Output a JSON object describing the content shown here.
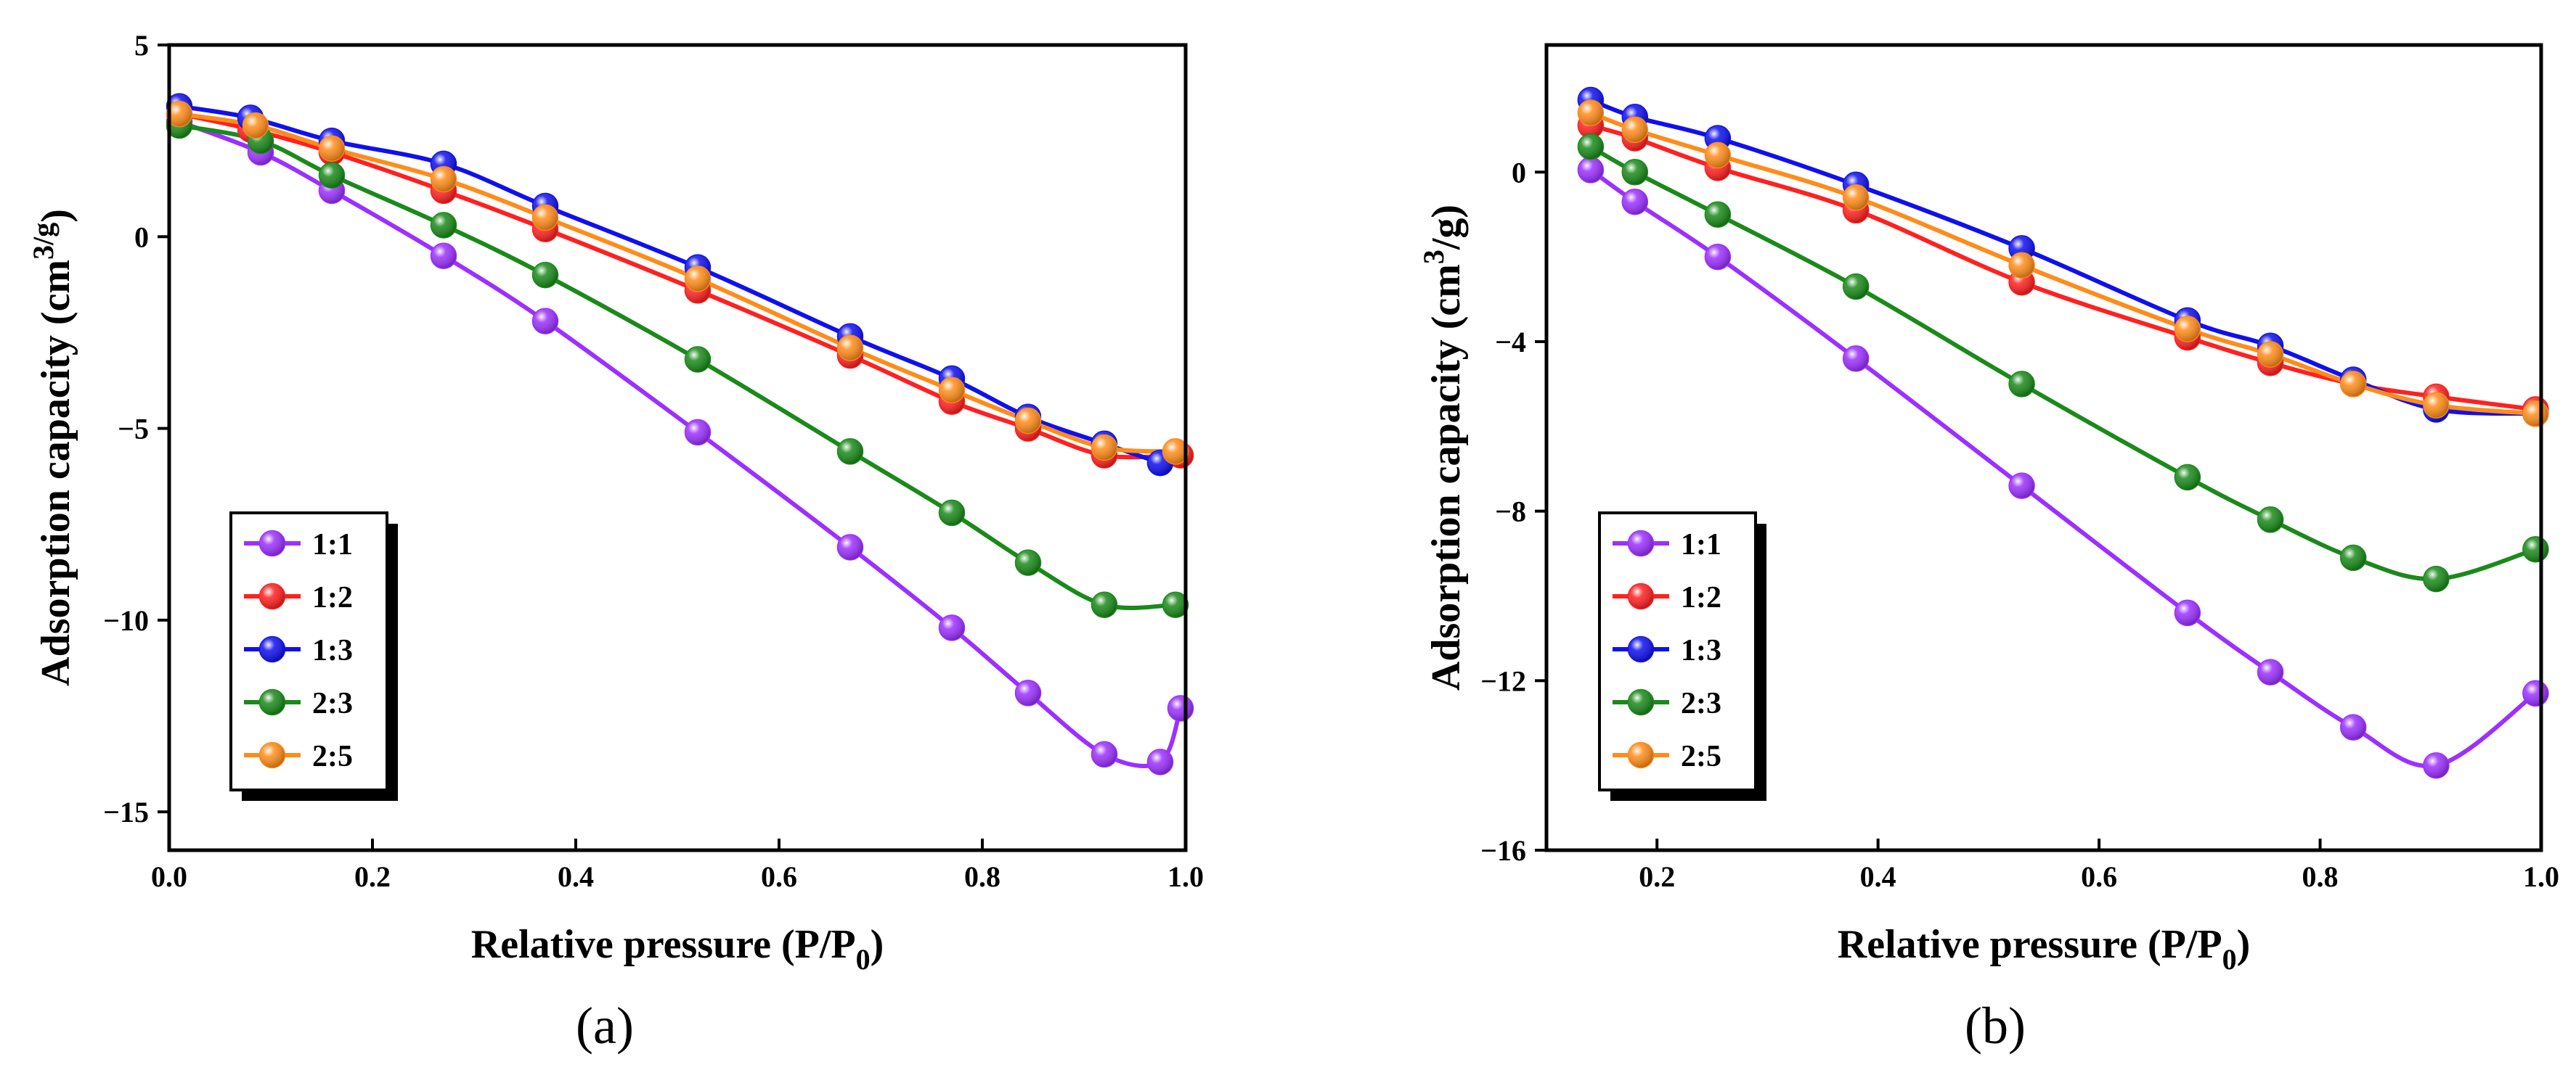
{
  "panels": {
    "a": {
      "label": "(a)",
      "xticks": [
        "0.0",
        "0.2",
        "0.4",
        "0.6",
        "0.8",
        "1.0"
      ],
      "yticks": [
        "5",
        "0",
        "−5",
        "−10",
        "−15"
      ]
    },
    "b": {
      "label": "(b)",
      "xticks": [
        "0.2",
        "0.4",
        "0.6",
        "0.8",
        "1.0"
      ],
      "yticks": [
        "0",
        "−4",
        "−8",
        "−12",
        "−16"
      ]
    }
  },
  "chart_data": [
    {
      "type": "line",
      "title": "",
      "xlabel": "Relative pressure (P/P0)",
      "ylabel": "Adsorption capacity (cm3/g)",
      "xlim": [
        0.0,
        1.0
      ],
      "ylim": [
        -16,
        5
      ],
      "xtick_values": [
        0.0,
        0.2,
        0.4,
        0.6,
        0.8,
        1.0
      ],
      "ytick_values": [
        5,
        0,
        -5,
        -10,
        -15
      ],
      "legend_position": "bottom-left",
      "grid": false,
      "series": [
        {
          "name": "1:1",
          "color": "#9b30ff",
          "x": [
            0.01,
            0.09,
            0.16,
            0.27,
            0.37,
            0.52,
            0.67,
            0.77,
            0.845,
            0.92,
            0.975,
            0.995
          ],
          "y": [
            3.0,
            2.2,
            1.2,
            -0.5,
            -2.2,
            -5.1,
            -8.1,
            -10.2,
            -11.9,
            -13.5,
            -13.7,
            -12.3
          ]
        },
        {
          "name": "1:2",
          "color": "#ff2020",
          "x": [
            0.01,
            0.08,
            0.16,
            0.27,
            0.37,
            0.52,
            0.67,
            0.77,
            0.845,
            0.92,
            0.995
          ],
          "y": [
            3.2,
            2.8,
            2.2,
            1.2,
            0.2,
            -1.4,
            -3.1,
            -4.3,
            -5.0,
            -5.7,
            -5.7
          ]
        },
        {
          "name": "1:3",
          "color": "#1010ee",
          "x": [
            0.01,
            0.08,
            0.16,
            0.27,
            0.37,
            0.52,
            0.67,
            0.77,
            0.845,
            0.92,
            0.975
          ],
          "y": [
            3.4,
            3.1,
            2.5,
            1.9,
            0.8,
            -0.8,
            -2.6,
            -3.7,
            -4.7,
            -5.4,
            -5.9
          ]
        },
        {
          "name": "2:3",
          "color": "#1a8a1a",
          "x": [
            0.01,
            0.09,
            0.16,
            0.27,
            0.37,
            0.52,
            0.67,
            0.77,
            0.845,
            0.92,
            0.99
          ],
          "y": [
            2.9,
            2.5,
            1.6,
            0.3,
            -1.0,
            -3.2,
            -5.6,
            -7.2,
            -8.5,
            -9.6,
            -9.6
          ]
        },
        {
          "name": "2:5",
          "color": "#ff8c1a",
          "x": [
            0.01,
            0.085,
            0.16,
            0.27,
            0.37,
            0.52,
            0.67,
            0.77,
            0.845,
            0.92,
            0.99
          ],
          "y": [
            3.2,
            2.9,
            2.3,
            1.5,
            0.5,
            -1.1,
            -2.9,
            -4.0,
            -4.8,
            -5.5,
            -5.6
          ]
        }
      ]
    },
    {
      "type": "line",
      "title": "",
      "xlabel": "Relative pressure (P/P0)",
      "ylabel": "Adsorption capacity (cm3/g)",
      "xlim": [
        0.1,
        1.0
      ],
      "ylim": [
        -16,
        3
      ],
      "xtick_values": [
        0.2,
        0.4,
        0.6,
        0.8,
        1.0
      ],
      "ytick_values": [
        0,
        -4,
        -8,
        -12,
        -16
      ],
      "legend_position": "bottom-left",
      "grid": false,
      "series": [
        {
          "name": "1:1",
          "color": "#9b30ff",
          "x": [
            0.14,
            0.18,
            0.255,
            0.38,
            0.53,
            0.68,
            0.755,
            0.83,
            0.905,
            0.995
          ],
          "y": [
            0.05,
            -0.7,
            -2.0,
            -4.4,
            -7.4,
            -10.4,
            -11.8,
            -13.1,
            -14.0,
            -12.3
          ]
        },
        {
          "name": "1:2",
          "color": "#ff2020",
          "x": [
            0.14,
            0.18,
            0.255,
            0.38,
            0.53,
            0.68,
            0.755,
            0.83,
            0.905,
            0.995
          ],
          "y": [
            1.1,
            0.8,
            0.1,
            -0.9,
            -2.6,
            -3.9,
            -4.5,
            -5.0,
            -5.3,
            -5.6
          ]
        },
        {
          "name": "1:3",
          "color": "#1010ee",
          "x": [
            0.14,
            0.18,
            0.255,
            0.38,
            0.53,
            0.68,
            0.755,
            0.83,
            0.905,
            0.995
          ],
          "y": [
            1.7,
            1.3,
            0.8,
            -0.3,
            -1.8,
            -3.5,
            -4.1,
            -4.9,
            -5.6,
            -5.7
          ]
        },
        {
          "name": "2:3",
          "color": "#1a8a1a",
          "x": [
            0.14,
            0.18,
            0.255,
            0.38,
            0.53,
            0.68,
            0.755,
            0.83,
            0.905,
            0.995
          ],
          "y": [
            0.6,
            0.0,
            -1.0,
            -2.7,
            -5.0,
            -7.2,
            -8.2,
            -9.1,
            -9.6,
            -8.9
          ]
        },
        {
          "name": "2:5",
          "color": "#ff8c1a",
          "x": [
            0.14,
            0.18,
            0.255,
            0.38,
            0.53,
            0.68,
            0.755,
            0.83,
            0.905,
            0.995
          ],
          "y": [
            1.4,
            1.0,
            0.4,
            -0.6,
            -2.2,
            -3.7,
            -4.3,
            -5.0,
            -5.5,
            -5.7
          ]
        }
      ]
    }
  ]
}
